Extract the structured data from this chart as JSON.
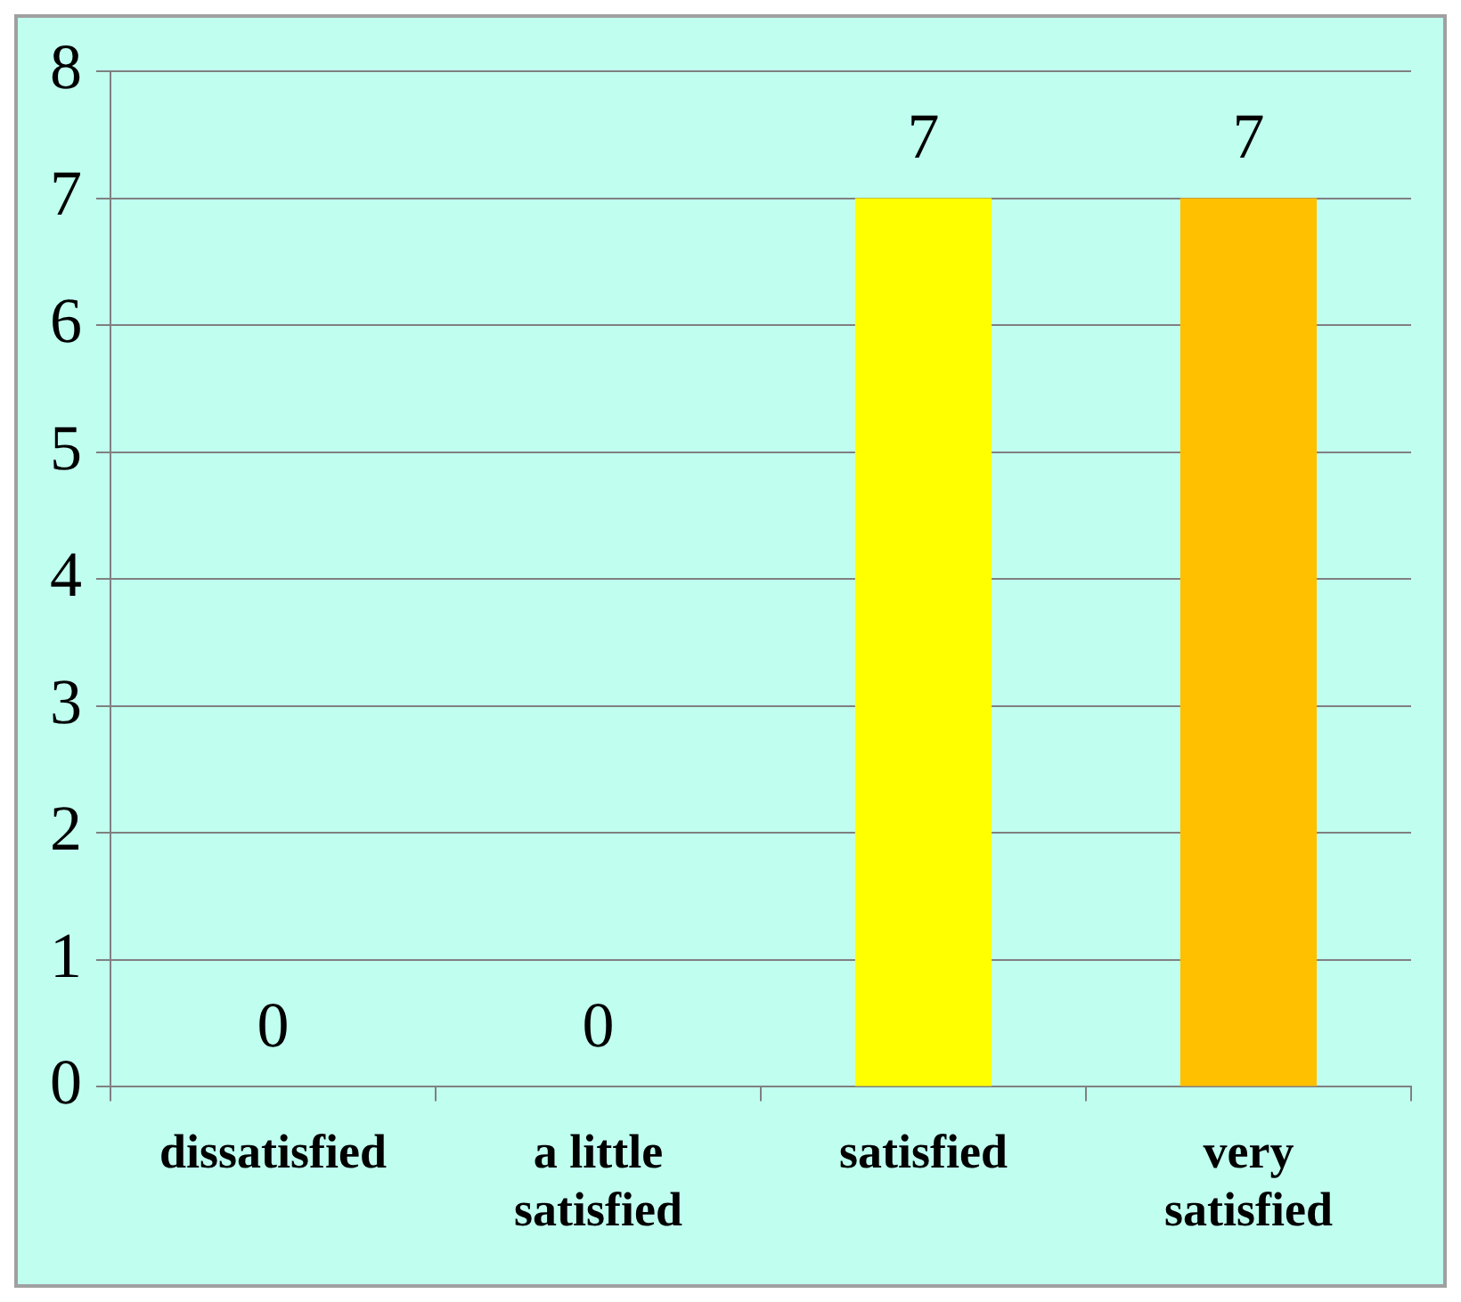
{
  "chart_data": {
    "type": "bar",
    "categories": [
      "dissatisfied",
      "a little satisfied",
      "satisfied",
      "very satisfied"
    ],
    "values": [
      0,
      0,
      7,
      7
    ],
    "colors": [
      "#ffff00",
      "#ffff00",
      "#ffff00",
      "#ffc000"
    ],
    "ylim": [
      0,
      8
    ],
    "yticks": [
      0,
      1,
      2,
      3,
      4,
      5,
      6,
      7,
      8
    ],
    "grid": "y",
    "data_labels": true
  }
}
